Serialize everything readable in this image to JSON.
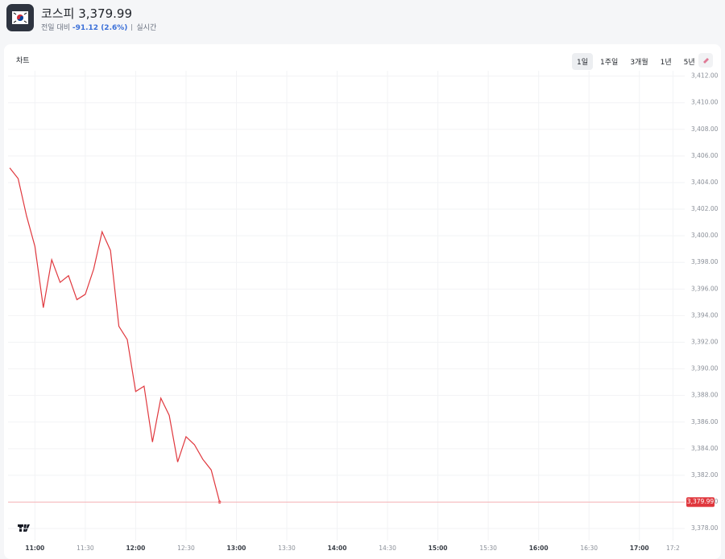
{
  "header": {
    "name": "코스피",
    "price": "3,379.99",
    "change_label": "전일 대비",
    "change": "-91.12 (2.6%)",
    "status": "실시간"
  },
  "tabs": {
    "title": "차트",
    "ranges": [
      "1일",
      "1주일",
      "3개월",
      "1년",
      "5년"
    ],
    "selected": 0
  },
  "chart_data": {
    "type": "line",
    "x": [
      645,
      650,
      655,
      660,
      665,
      670,
      675,
      680,
      685,
      690,
      695,
      700,
      705,
      710,
      715,
      720,
      725,
      730,
      735,
      740,
      745,
      750,
      755,
      760,
      765,
      770
    ],
    "series": [
      {
        "name": "코스피",
        "color": "#e0383e",
        "values": [
          3405.1,
          3404.3,
          3401.5,
          3399.2,
          3394.6,
          3398.2,
          3396.5,
          3397.0,
          3395.2,
          3395.6,
          3397.5,
          3400.3,
          3398.9,
          3393.2,
          3392.2,
          3388.3,
          3388.7,
          3384.5,
          3387.8,
          3386.5,
          3383.0,
          3384.9,
          3384.3,
          3383.2,
          3382.4,
          3379.99
        ]
      }
    ],
    "last_price": {
      "value": 3379.99,
      "label": "3,379.99"
    },
    "xlim": [
      644,
      1047
    ],
    "xticks": [
      {
        "value": 660,
        "label": "11:00"
      },
      {
        "value": 690,
        "label": "11:30"
      },
      {
        "value": 720,
        "label": "12:00"
      },
      {
        "value": 750,
        "label": "12:30"
      },
      {
        "value": 780,
        "label": "13:00"
      },
      {
        "value": 810,
        "label": "13:30"
      },
      {
        "value": 840,
        "label": "14:00"
      },
      {
        "value": 870,
        "label": "14:30"
      },
      {
        "value": 900,
        "label": "15:00"
      },
      {
        "value": 930,
        "label": "15:30"
      },
      {
        "value": 960,
        "label": "16:00"
      },
      {
        "value": 990,
        "label": "16:30"
      },
      {
        "value": 1020,
        "label": "17:00"
      },
      {
        "value": 1040,
        "label": "17:2"
      }
    ],
    "ylim": [
      3377.1,
      3412.4
    ],
    "yticks": [
      {
        "value": 3378,
        "label": "3,378.00"
      },
      {
        "value": 3380,
        "label": "3,380.00"
      },
      {
        "value": 3382,
        "label": "3,382.00"
      },
      {
        "value": 3384,
        "label": "3,384.00"
      },
      {
        "value": 3386,
        "label": "3,386.00"
      },
      {
        "value": 3388,
        "label": "3,388.00"
      },
      {
        "value": 3390,
        "label": "3,390.00"
      },
      {
        "value": 3392,
        "label": "3,392.00"
      },
      {
        "value": 3394,
        "label": "3,394.00"
      },
      {
        "value": 3396,
        "label": "3,396.00"
      },
      {
        "value": 3398,
        "label": "3,398.00"
      },
      {
        "value": 3400,
        "label": "3,400.00"
      },
      {
        "value": 3402,
        "label": "3,402.00"
      },
      {
        "value": 3404,
        "label": "3,404.00"
      },
      {
        "value": 3406,
        "label": "3,406.00"
      },
      {
        "value": 3408,
        "label": "3,408.00"
      },
      {
        "value": 3410,
        "label": "3,410.00"
      },
      {
        "value": 3412,
        "label": "3,412.00"
      }
    ],
    "grid": true
  }
}
